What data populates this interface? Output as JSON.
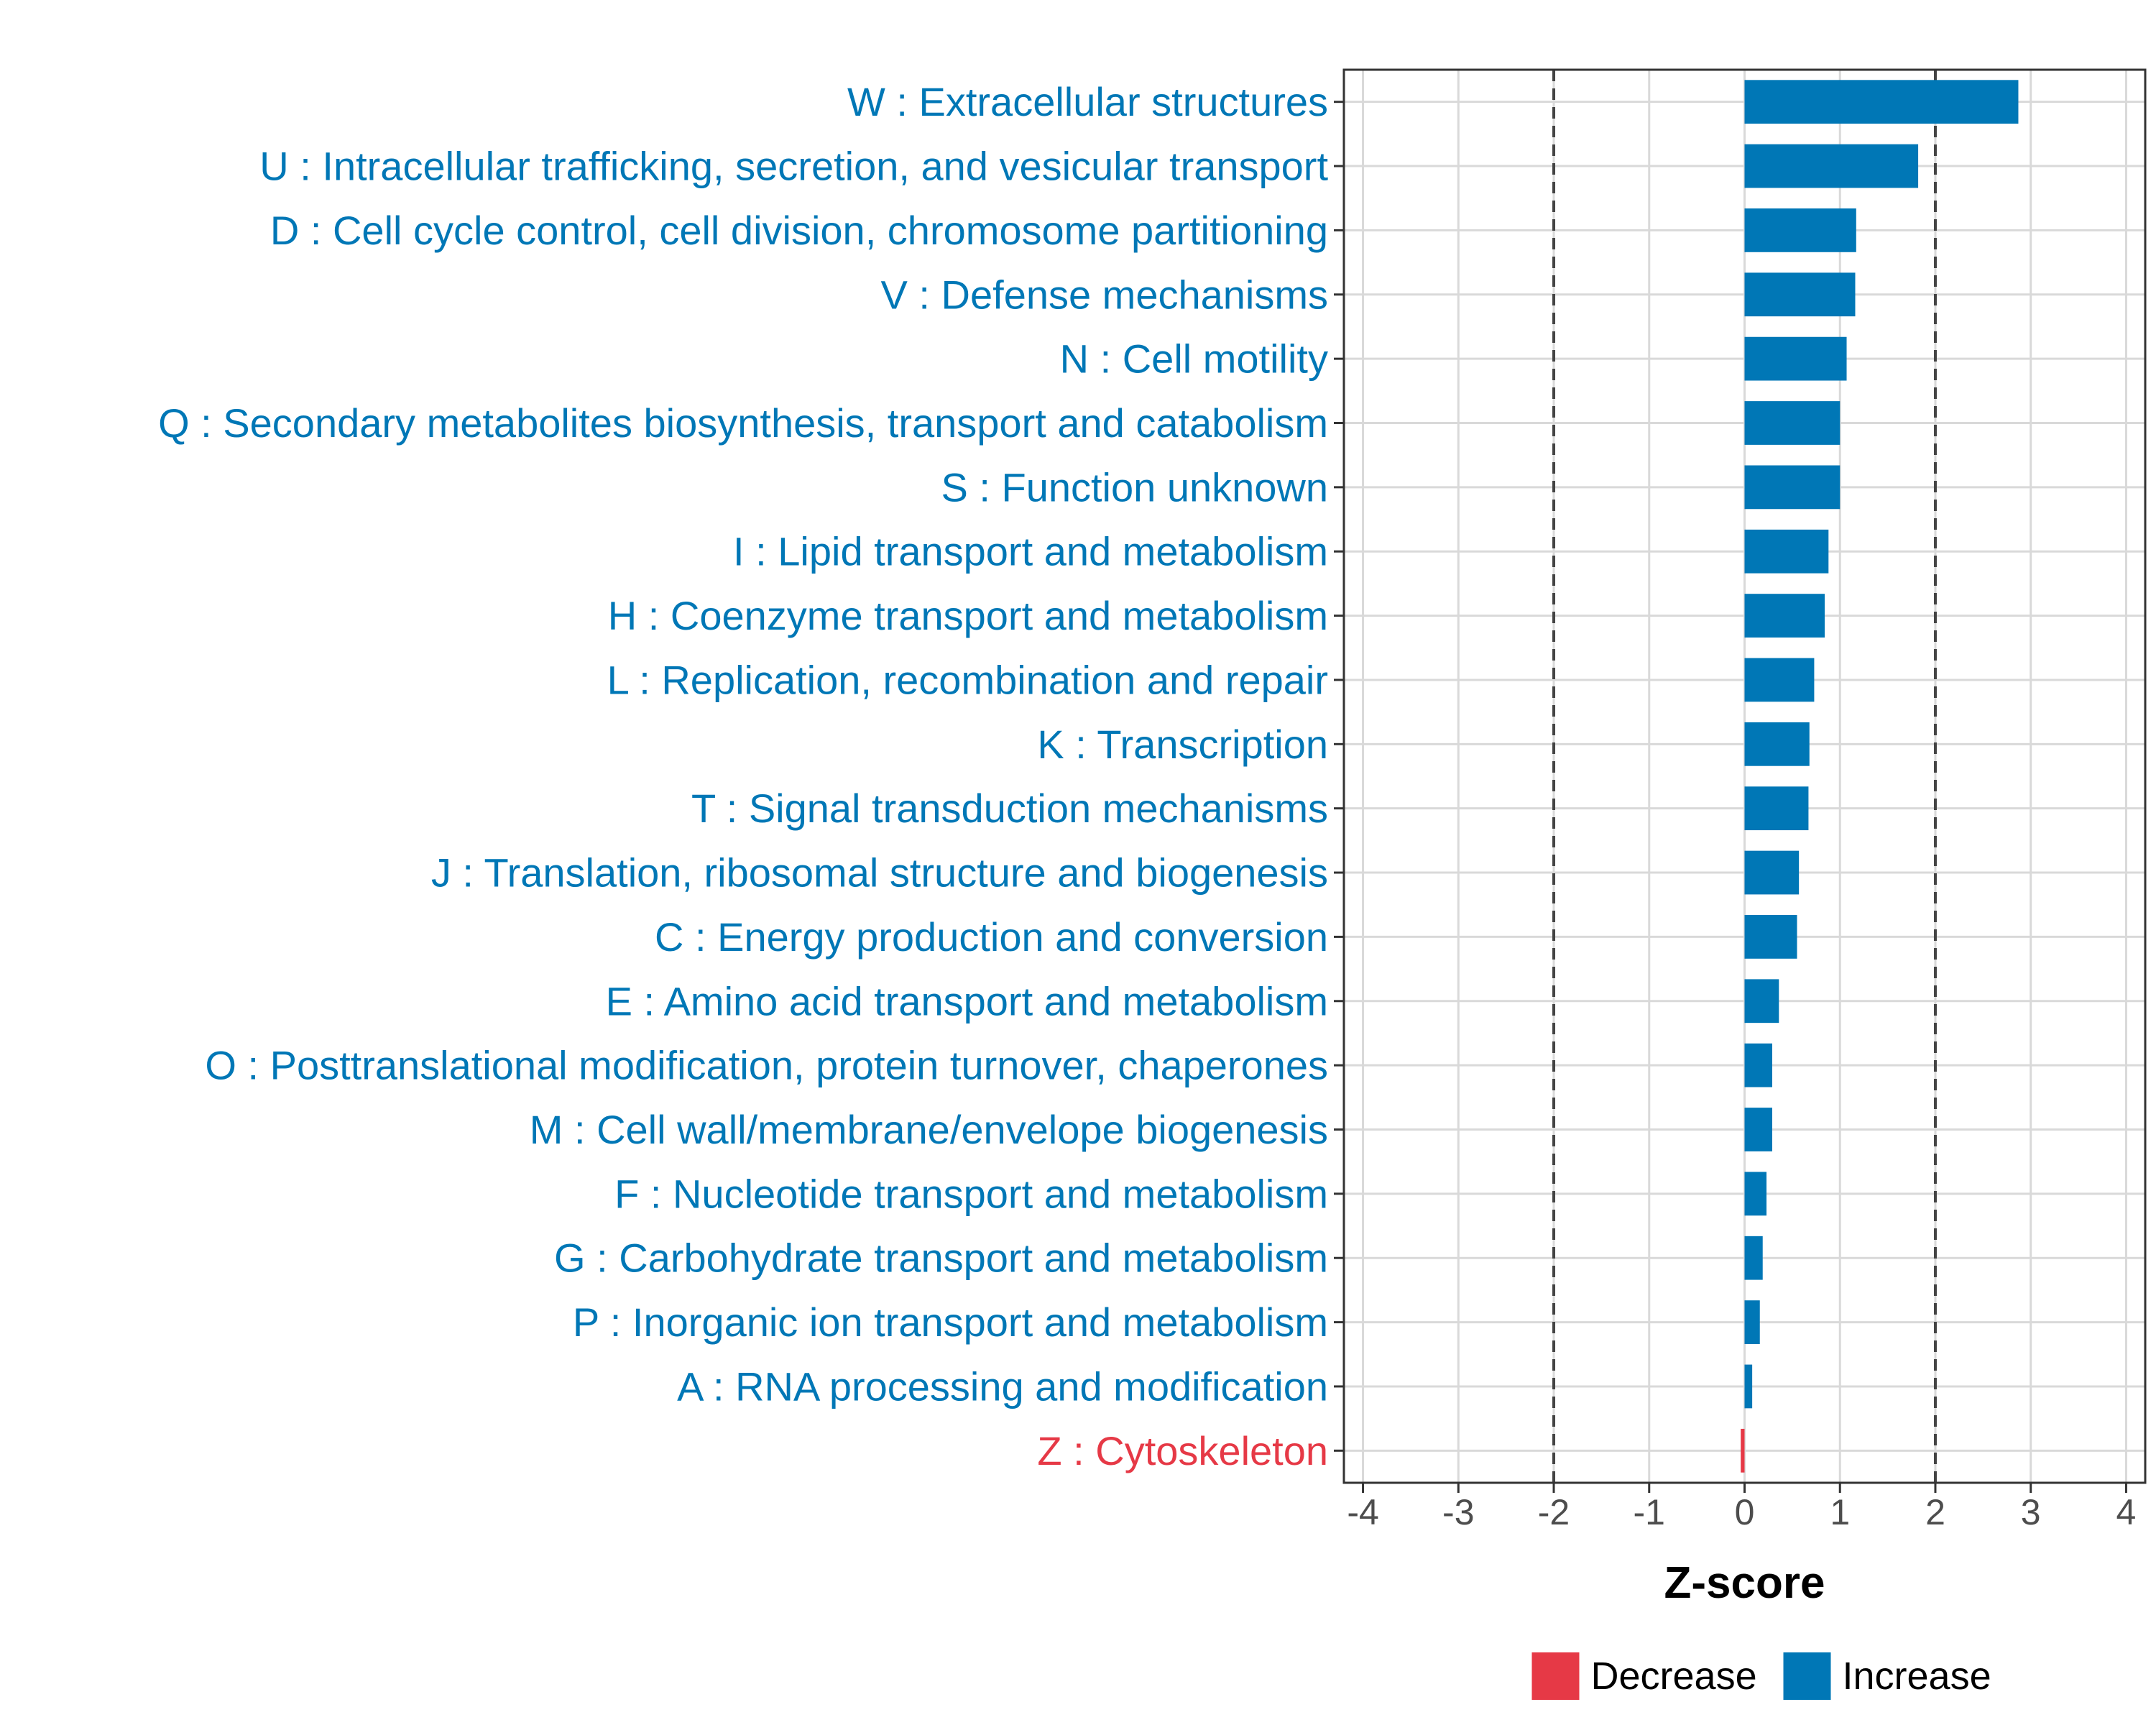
{
  "chart_data": {
    "type": "bar",
    "orientation": "horizontal",
    "xlabel": "Z-score",
    "xlim": [
      -4.2,
      4.2
    ],
    "xticks": [
      "-4",
      "-3",
      "-2",
      "-1",
      "0",
      "1",
      "2",
      "3",
      "4"
    ],
    "reference_lines": [
      -2,
      2
    ],
    "grid": true,
    "legend_position": "bottom",
    "colors": {
      "Decrease": "#e63946",
      "Increase": "#0077b6"
    },
    "legend": [
      {
        "label": "Decrease",
        "color": "#e63946"
      },
      {
        "label": "Increase",
        "color": "#0077b6"
      }
    ],
    "categories": [
      "W : Extracellular structures",
      "U : Intracellular trafficking, secretion, and vesicular transport",
      "D : Cell cycle control, cell division, chromosome partitioning",
      "V : Defense mechanisms",
      "N : Cell motility",
      "Q : Secondary metabolites biosynthesis, transport and catabolism",
      "S : Function unknown",
      "I : Lipid transport and metabolism",
      "H : Coenzyme transport and metabolism",
      "L : Replication, recombination and repair",
      "K : Transcription",
      "T : Signal transduction mechanisms",
      "J : Translation, ribosomal structure and biogenesis",
      "C : Energy production and conversion",
      "E : Amino acid transport and metabolism",
      "O : Posttranslational modification, protein turnover, chaperones",
      "M : Cell wall/membrane/envelope biogenesis",
      "F : Nucleotide transport and metabolism",
      "G : Carbohydrate transport and metabolism",
      "P : Inorganic ion transport and metabolism",
      "A : RNA processing and modification",
      "Z : Cytoskeleton"
    ],
    "values": [
      2.87,
      1.82,
      1.17,
      1.16,
      1.07,
      1.0,
      1.0,
      0.88,
      0.84,
      0.73,
      0.68,
      0.67,
      0.57,
      0.55,
      0.36,
      0.29,
      0.29,
      0.23,
      0.19,
      0.16,
      0.08,
      -0.04
    ],
    "direction": [
      "Increase",
      "Increase",
      "Increase",
      "Increase",
      "Increase",
      "Increase",
      "Increase",
      "Increase",
      "Increase",
      "Increase",
      "Increase",
      "Increase",
      "Increase",
      "Increase",
      "Increase",
      "Increase",
      "Increase",
      "Increase",
      "Increase",
      "Increase",
      "Increase",
      "Decrease"
    ]
  }
}
